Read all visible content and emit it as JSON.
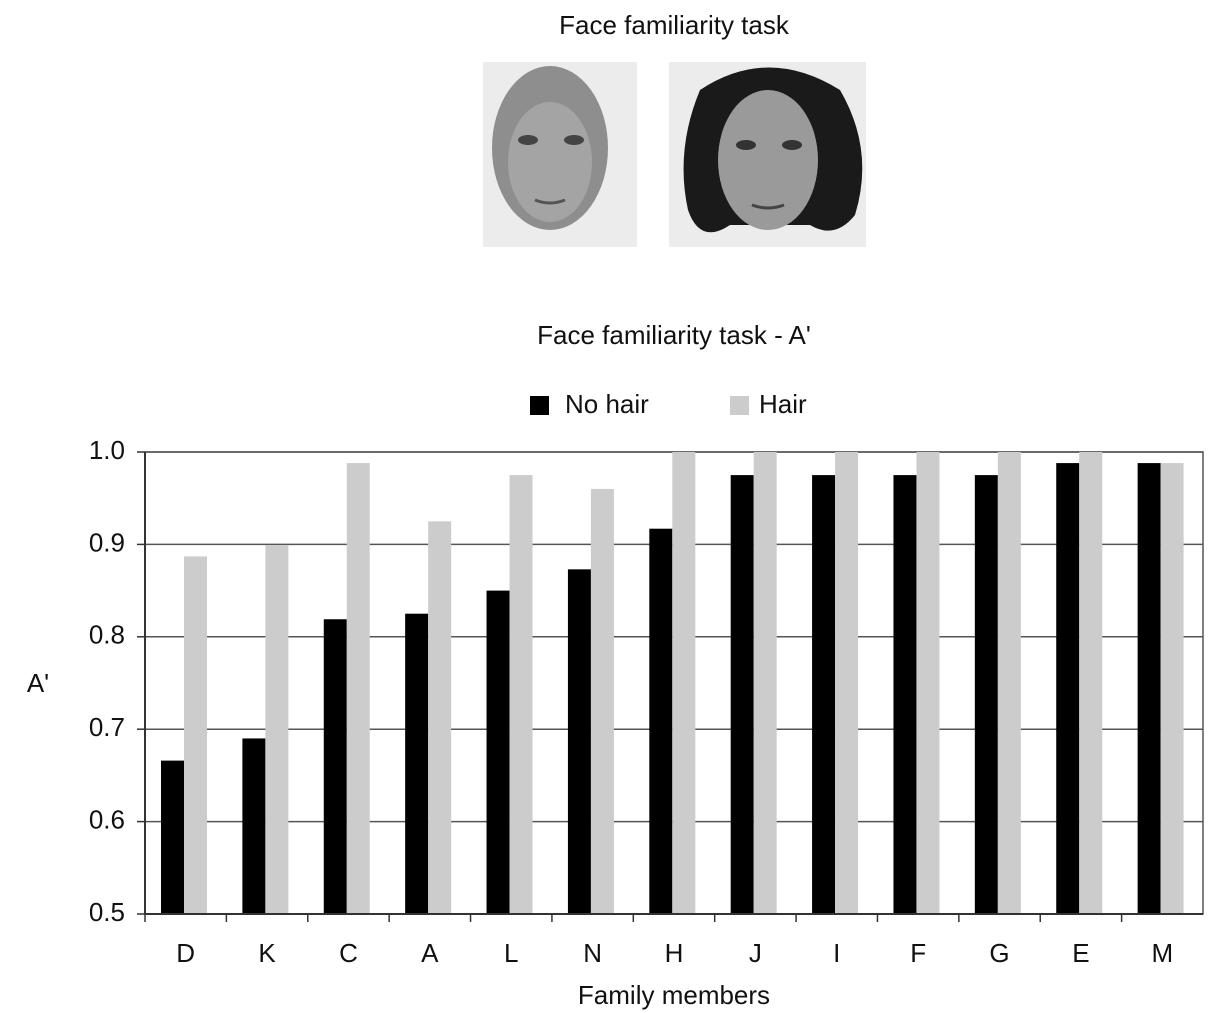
{
  "chart_data": {
    "type": "bar",
    "header": "Face familiarity task",
    "title": "Face familiarity task - A'",
    "x_label": "Family members",
    "y_label": "A'",
    "categories": [
      "D",
      "K",
      "C",
      "A",
      "L",
      "N",
      "H",
      "J",
      "I",
      "F",
      "G",
      "E",
      "M"
    ],
    "series": [
      {
        "name": "No hair",
        "color": "#000000",
        "values": [
          0.666,
          0.69,
          0.819,
          0.825,
          0.85,
          0.873,
          0.917,
          0.975,
          0.975,
          0.975,
          0.975,
          0.988,
          0.988
        ]
      },
      {
        "name": "Hair",
        "color": "#cccccc",
        "values": [
          0.887,
          0.899,
          0.988,
          0.925,
          0.975,
          0.96,
          1.0,
          1.0,
          1.0,
          1.0,
          1.0,
          1.0,
          0.988
        ]
      }
    ],
    "ylim": [
      0.5,
      1.0
    ],
    "yticks": [
      0.5,
      0.6,
      0.7,
      0.8,
      0.9,
      {
        "value": 1.0,
        "label": "1.0"
      }
    ],
    "grid": true,
    "legend": "top"
  }
}
